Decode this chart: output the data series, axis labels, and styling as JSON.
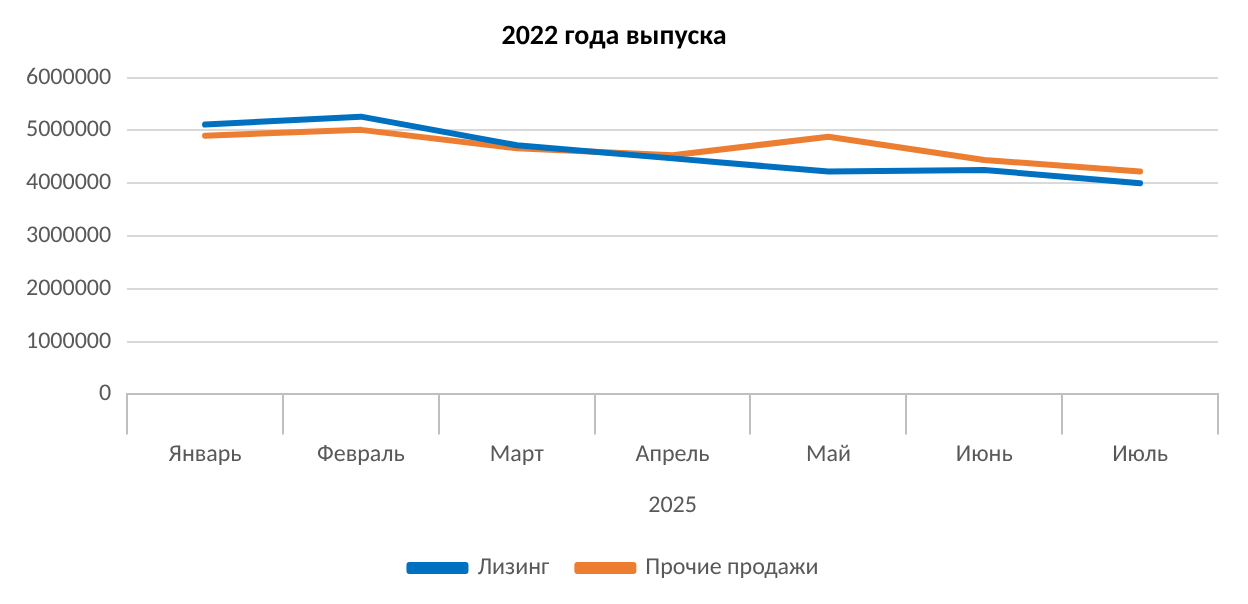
{
  "chart_data": {
    "type": "line",
    "title": "2022 года выпуска",
    "xlabel": "2025",
    "categories": [
      "Январь",
      "Февраль",
      "Март",
      "Апрель",
      "Май",
      "Июнь",
      "Июль"
    ],
    "series": [
      {
        "name": "Лизинг",
        "color": "#0070c0",
        "values": [
          5110000,
          5260000,
          4720000,
          4470000,
          4220000,
          4250000,
          4000000
        ]
      },
      {
        "name": "Прочие продажи",
        "color": "#ed7d31",
        "values": [
          4900000,
          5010000,
          4660000,
          4530000,
          4880000,
          4440000,
          4220000
        ]
      }
    ],
    "ylim": [
      0,
      6000000
    ],
    "yticks": [
      0,
      1000000,
      2000000,
      3000000,
      4000000,
      5000000,
      6000000
    ],
    "grid": "y",
    "legend": "bottom",
    "marker": "none",
    "line_style": "solid"
  }
}
